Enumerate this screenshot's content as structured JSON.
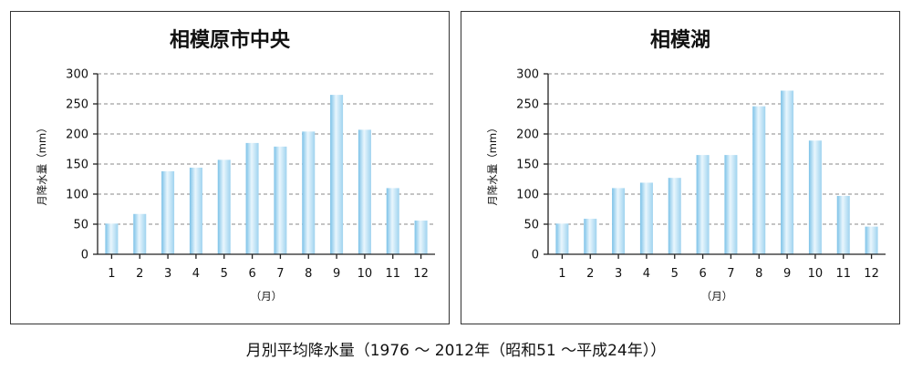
{
  "caption": "月別平均降水量（1976 ～ 2012年（昭和51 ～平成24年））",
  "chart_data": [
    {
      "type": "bar",
      "title": "相模原市中央",
      "xlabel": "（月）",
      "ylabel": "月降水量（mm）",
      "categories": [
        "1",
        "2",
        "3",
        "4",
        "5",
        "6",
        "7",
        "8",
        "9",
        "10",
        "11",
        "12"
      ],
      "values": [
        51,
        67,
        138,
        144,
        157,
        185,
        179,
        204,
        265,
        207,
        110,
        56
      ],
      "ylim": [
        0,
        300
      ],
      "yticks": [
        "0",
        "50",
        "100",
        "150",
        "200",
        "250",
        "300"
      ],
      "grid": true,
      "bar_color": "#9fd3ef"
    },
    {
      "type": "bar",
      "title": "相模湖",
      "xlabel": "（月）",
      "ylabel": "月降水量（mm）",
      "categories": [
        "1",
        "2",
        "3",
        "4",
        "5",
        "6",
        "7",
        "8",
        "9",
        "10",
        "11",
        "12"
      ],
      "values": [
        51,
        59,
        110,
        119,
        127,
        165,
        165,
        246,
        272,
        189,
        97,
        46
      ],
      "ylim": [
        0,
        300
      ],
      "yticks": [
        "0",
        "50",
        "100",
        "150",
        "200",
        "250",
        "300"
      ],
      "grid": true,
      "bar_color": "#9fd3ef"
    }
  ]
}
